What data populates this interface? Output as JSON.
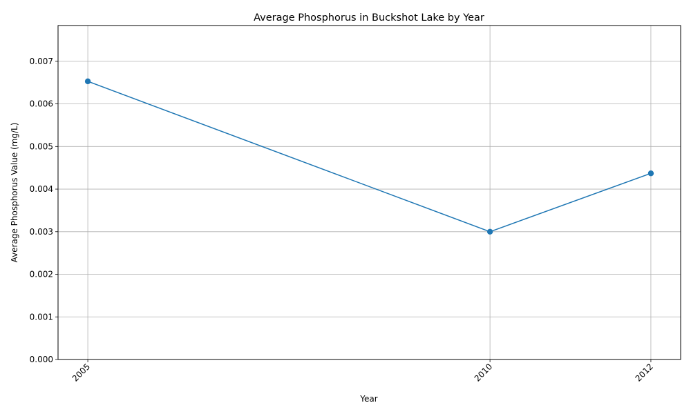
{
  "chart_data": {
    "type": "line",
    "title": "Average Phosphorus in Buckshot Lake by Year",
    "xlabel": "Year",
    "ylabel": "Average Phosphorus Value (mg/L)",
    "x": [
      2005,
      2010,
      2012
    ],
    "x_tick_labels": [
      "2005",
      "2010",
      "2012"
    ],
    "series": [
      {
        "values": [
          0.00653,
          0.003,
          0.00437
        ],
        "color": "#1f77b4",
        "marker": "circle"
      }
    ],
    "xlim": [
      2004.63,
      2012.37
    ],
    "ylim": [
      0,
      0.00784
    ],
    "y_ticks": [
      0,
      0.001,
      0.002,
      0.003,
      0.004,
      0.005,
      0.006,
      0.007
    ],
    "y_tick_labels": [
      "0.000",
      "0.001",
      "0.002",
      "0.003",
      "0.004",
      "0.005",
      "0.006",
      "0.007"
    ],
    "grid": true,
    "legend": "none"
  }
}
